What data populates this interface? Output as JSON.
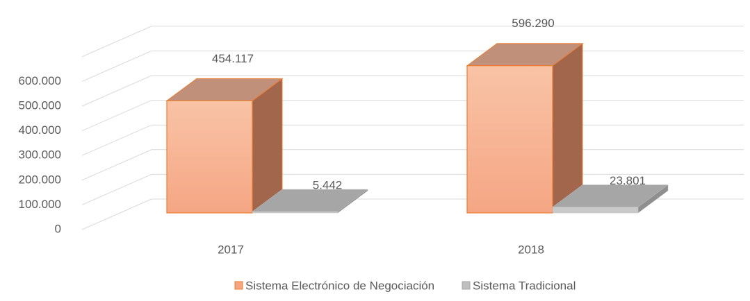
{
  "chart_data": {
    "type": "bar3d",
    "categories": [
      "2017",
      "2018"
    ],
    "series": [
      {
        "name": "Sistema Electrónico de Negociación",
        "color": "#f4a582",
        "values": [
          454117,
          596290
        ],
        "value_labels": [
          "454.117",
          "596.290"
        ]
      },
      {
        "name": "Sistema Tradicional",
        "color": "#bfbfbf",
        "values": [
          5442,
          23801
        ],
        "value_labels": [
          "5.442",
          "23.801"
        ]
      }
    ],
    "ylim": [
      0,
      700000
    ],
    "yticks": [
      0,
      {
        "value": 100000,
        "label": "100.000"
      },
      {
        "value": 200000,
        "label": "200.000"
      },
      {
        "value": 300000,
        "label": "300.000"
      },
      {
        "value": 400000,
        "label": "400.000"
      },
      {
        "value": 500000,
        "label": "500.000"
      },
      {
        "value": 600000,
        "label": "600.000"
      }
    ],
    "grid": true,
    "legend": "bottom"
  }
}
